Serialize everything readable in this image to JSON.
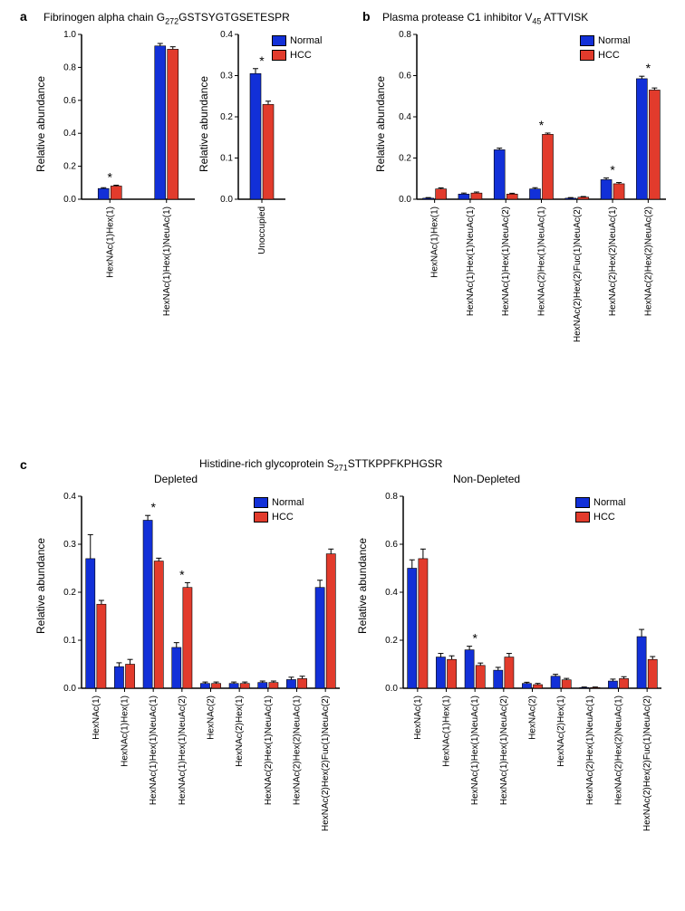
{
  "colors": {
    "normal": "#1230d8",
    "hcc": "#e23b2c",
    "axis": "#000000",
    "bg": "#ffffff"
  },
  "legend": {
    "normal": "Normal",
    "hcc": "HCC"
  },
  "panel_a": {
    "label": "a",
    "title_prefix": "Fibrinogen alpha chain G",
    "title_subscript": "272",
    "title_suffix": "GSTSYGTGSETESPR",
    "ylabel": "Relative abundance",
    "chart1": {
      "ylim": [
        0,
        1.0
      ],
      "ytick_step": 0.2,
      "categories": [
        "HexNAc(1)Hex(1)",
        "HexNAc(1)Hex(1)NeuAc(1)"
      ],
      "normal": [
        0.065,
        0.93
      ],
      "hcc": [
        0.08,
        0.91
      ],
      "err_n": [
        0.005,
        0.015
      ],
      "err_h": [
        0.005,
        0.015
      ],
      "sig": [
        true,
        false
      ]
    },
    "chart2": {
      "ylim": [
        0,
        0.4
      ],
      "ytick_step": 0.1,
      "categories": [
        "Unoccupied"
      ],
      "normal": [
        0.305
      ],
      "hcc": [
        0.23
      ],
      "err_n": [
        0.012
      ],
      "err_h": [
        0.008
      ],
      "sig": [
        true
      ]
    }
  },
  "panel_b": {
    "label": "b",
    "title_prefix": "Plasma protease C1 inhibitor V",
    "title_subscript": "45",
    "title_suffix": " ATTVISK",
    "ylabel": "Relative abundance",
    "chart": {
      "ylim": [
        0,
        0.8
      ],
      "ytick_step": 0.2,
      "categories": [
        "HexNAc(1)Hex(1)",
        "HexNAc(1)Hex(1)NeuAc(1)",
        "HexNAc(1)Hex(1)NeuAc(2)",
        "HexNAc(2)Hex(1)NeuAc(1)",
        "HexNAc(2)Hex(2)Fuc(1)NeuAc(2)",
        "HexNAc(2)Hex(2)NeuAc(1)",
        "HexNAc(2)Hex(2)NeuAc(2)"
      ],
      "normal": [
        0.005,
        0.025,
        0.24,
        0.05,
        0.005,
        0.095,
        0.585
      ],
      "hcc": [
        0.05,
        0.03,
        0.025,
        0.315,
        0.01,
        0.075,
        0.53
      ],
      "err_n": [
        0.003,
        0.005,
        0.008,
        0.006,
        0.003,
        0.008,
        0.012
      ],
      "err_h": [
        0.005,
        0.005,
        0.004,
        0.006,
        0.003,
        0.006,
        0.01
      ],
      "sig": [
        false,
        false,
        false,
        true,
        false,
        true,
        true
      ]
    }
  },
  "panel_c": {
    "label": "c",
    "title_prefix": "Histidine-rich glycoprotein S",
    "title_subscript": "271",
    "title_suffix": "STTKPPFKPHGSR",
    "subtitle_left": "Depleted",
    "subtitle_right": "Non-Depleted",
    "ylabel": "Relative abundance",
    "categories": [
      "HexNAc(1)",
      "HexNAc(1)Hex(1)",
      "HexNAc(1)Hex(1)NeuAc(1)",
      "HexNAc(1)Hex(1)NeuAc(2)",
      "HexNAc(2)",
      "HexNAc(2)Hex(1)",
      "HexNAc(2)Hex(1)NeuAc(1)",
      "HexNAc(2)Hex(2)NeuAc(1)",
      "HexNAc(2)Hex(2)Fuc(1)NeuAc(2)"
    ],
    "chart_left": {
      "ylim": [
        0,
        0.4
      ],
      "ytick_step": 0.1,
      "normal": [
        0.27,
        0.045,
        0.35,
        0.085,
        0.01,
        0.01,
        0.012,
        0.018,
        0.21
      ],
      "hcc": [
        0.175,
        0.05,
        0.265,
        0.21,
        0.01,
        0.01,
        0.012,
        0.02,
        0.28
      ],
      "err_n": [
        0.05,
        0.008,
        0.01,
        0.01,
        0.003,
        0.003,
        0.003,
        0.005,
        0.015
      ],
      "err_h": [
        0.008,
        0.01,
        0.006,
        0.01,
        0.003,
        0.003,
        0.003,
        0.005,
        0.01
      ],
      "sig": [
        false,
        false,
        true,
        true,
        false,
        false,
        false,
        false,
        false
      ]
    },
    "chart_right": {
      "ylim": [
        0,
        0.8
      ],
      "ytick_step": 0.2,
      "normal": [
        0.5,
        0.13,
        0.16,
        0.075,
        0.02,
        0.05,
        0.003,
        0.03,
        0.215
      ],
      "hcc": [
        0.54,
        0.12,
        0.095,
        0.13,
        0.015,
        0.035,
        0.003,
        0.04,
        0.12
      ],
      "err_n": [
        0.035,
        0.015,
        0.015,
        0.012,
        0.005,
        0.008,
        0.002,
        0.008,
        0.03
      ],
      "err_h": [
        0.04,
        0.015,
        0.01,
        0.015,
        0.005,
        0.006,
        0.002,
        0.008,
        0.012
      ],
      "sig": [
        false,
        false,
        true,
        false,
        false,
        false,
        false,
        false,
        false
      ]
    }
  }
}
